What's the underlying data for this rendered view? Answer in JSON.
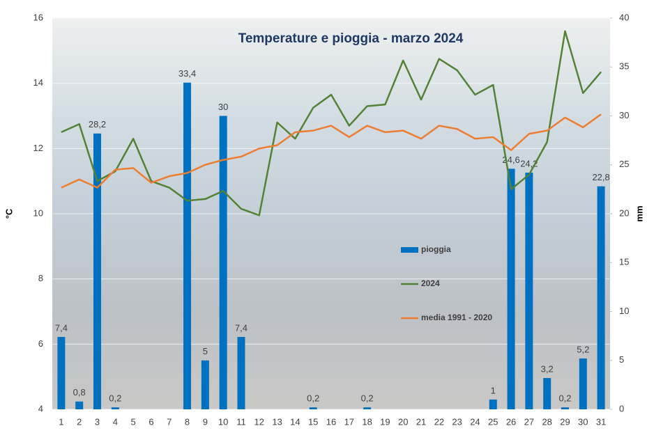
{
  "chart_data": {
    "type": "bar-line",
    "title": "Temperature e pioggia - marzo 2024",
    "y_label": "°C",
    "y2_label": "mm",
    "categories": [
      "1",
      "2",
      "3",
      "4",
      "5",
      "6",
      "7",
      "8",
      "9",
      "10",
      "11",
      "12",
      "13",
      "14",
      "15",
      "16",
      "17",
      "18",
      "19",
      "20",
      "21",
      "22",
      "23",
      "24",
      "25",
      "26",
      "27",
      "28",
      "29",
      "30",
      "31"
    ],
    "ylim": [
      4,
      16
    ],
    "yticks": [
      4,
      6,
      8,
      10,
      12,
      14,
      16
    ],
    "y2lim": [
      0,
      40
    ],
    "y2ticks": [
      0,
      5,
      10,
      15,
      20,
      25,
      30,
      35,
      40
    ],
    "grid": true,
    "series": [
      {
        "name": "pioggia",
        "type": "bar",
        "axis": "y2",
        "color": "#0070c0",
        "values": [
          7.4,
          0.8,
          28.2,
          0.2,
          0,
          0,
          0,
          33.4,
          5,
          30,
          7.4,
          0,
          0,
          0,
          0.2,
          0,
          0,
          0.2,
          0,
          0,
          0,
          0,
          0,
          0,
          1,
          24.6,
          24.2,
          3.2,
          0.2,
          5.2,
          22.8
        ],
        "value_labels": [
          "7,4",
          "0,8",
          "28,2",
          "0,2",
          null,
          null,
          null,
          "33,4",
          "5",
          "30",
          "7,4",
          null,
          null,
          null,
          "0,2",
          null,
          null,
          "0,2",
          null,
          null,
          null,
          null,
          null,
          null,
          "1",
          "24,6",
          "24,2",
          "3,2",
          "0,2",
          "5,2",
          "22,8"
        ]
      },
      {
        "name": "2024",
        "type": "line",
        "color": "#548235",
        "values": [
          12.5,
          12.75,
          11.0,
          11.3,
          12.3,
          11.0,
          10.8,
          10.4,
          10.45,
          10.7,
          10.15,
          9.95,
          12.8,
          12.3,
          13.25,
          13.65,
          12.7,
          13.3,
          13.35,
          14.7,
          13.5,
          14.75,
          14.4,
          13.65,
          13.95,
          10.75,
          11.2,
          12.2,
          15.6,
          13.7,
          14.35
        ]
      },
      {
        "name": "media 1991 - 2020",
        "type": "line",
        "color": "#ed7d31",
        "values": [
          10.8,
          11.05,
          10.8,
          11.35,
          11.4,
          10.95,
          11.15,
          11.25,
          11.5,
          11.65,
          11.75,
          12.0,
          12.1,
          12.5,
          12.55,
          12.7,
          12.35,
          12.7,
          12.5,
          12.55,
          12.3,
          12.7,
          12.6,
          12.3,
          12.35,
          11.95,
          12.45,
          12.55,
          12.95,
          12.65,
          13.05
        ]
      }
    ]
  }
}
